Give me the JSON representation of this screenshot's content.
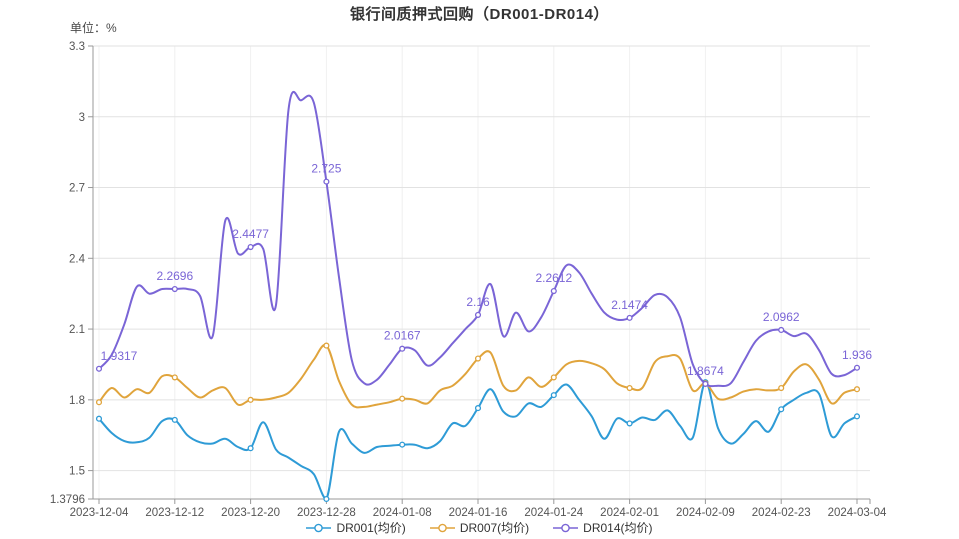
{
  "title": "银行间质押式回购（DR001-DR014）",
  "unit_label": "单位：%",
  "colors": {
    "grid": "#e2e2e2",
    "grid_vertical": "#f0f0f0",
    "axis": "#999999",
    "tick_label": "#555555",
    "title": "#333333",
    "background": "#ffffff"
  },
  "chart_data": {
    "type": "line",
    "smooth": true,
    "grid": true,
    "legend_position": "bottom",
    "ylim": [
      1.3796,
      3.3
    ],
    "y_tick_values": [
      3.3,
      3.0,
      2.7,
      2.4,
      2.1,
      1.8,
      1.5
    ],
    "y_tick_labels": [
      "3.3",
      "3",
      "2.7",
      "2.4",
      "2.1",
      "1.8",
      "1.5"
    ],
    "y_min_label": "1.3796",
    "x_tick_labels": [
      "2023-12-04",
      "2023-12-12",
      "2023-12-20",
      "2023-12-28",
      "2024-01-08",
      "2024-01-16",
      "2024-01-24",
      "2024-02-01",
      "2024-02-09",
      "2024-02-23",
      "2024-03-04"
    ],
    "points_per_tick": 6,
    "series": [
      {
        "name": "DR001(均价)",
        "color": "#2e9bd6",
        "values": [
          1.72,
          1.66,
          1.625,
          1.62,
          1.64,
          1.71,
          1.715,
          1.65,
          1.62,
          1.615,
          1.635,
          1.6,
          1.595,
          1.705,
          1.59,
          1.555,
          1.52,
          1.485,
          1.3796,
          1.665,
          1.615,
          1.575,
          1.6,
          1.605,
          1.61,
          1.61,
          1.595,
          1.625,
          1.7,
          1.69,
          1.765,
          1.845,
          1.75,
          1.73,
          1.785,
          1.77,
          1.82,
          1.865,
          1.8,
          1.73,
          1.635,
          1.72,
          1.7,
          1.725,
          1.715,
          1.755,
          1.69,
          1.64,
          1.875,
          1.68,
          1.615,
          1.655,
          1.71,
          1.665,
          1.76,
          1.8,
          1.83,
          1.825,
          1.645,
          1.7,
          1.73
        ]
      },
      {
        "name": "DR007(均价)",
        "color": "#e0a43c",
        "values": [
          1.79,
          1.85,
          1.81,
          1.845,
          1.83,
          1.9,
          1.895,
          1.85,
          1.81,
          1.84,
          1.85,
          1.78,
          1.8,
          1.8,
          1.81,
          1.83,
          1.89,
          1.97,
          2.03,
          1.88,
          1.78,
          1.77,
          1.78,
          1.79,
          1.805,
          1.8,
          1.785,
          1.84,
          1.86,
          1.91,
          1.975,
          2.0,
          1.86,
          1.84,
          1.895,
          1.855,
          1.895,
          1.95,
          1.965,
          1.955,
          1.93,
          1.87,
          1.85,
          1.85,
          1.96,
          1.985,
          1.975,
          1.84,
          1.87,
          1.805,
          1.81,
          1.835,
          1.845,
          1.84,
          1.85,
          1.92,
          1.95,
          1.885,
          1.785,
          1.83,
          1.845
        ]
      },
      {
        "name": "DR014(均价)",
        "color": "#7a65d6",
        "values": [
          1.9317,
          1.99,
          2.12,
          2.28,
          2.25,
          2.27,
          2.2696,
          2.27,
          2.24,
          2.07,
          2.56,
          2.42,
          2.4477,
          2.44,
          2.2,
          3.03,
          3.07,
          3.06,
          2.725,
          2.32,
          1.97,
          1.87,
          1.885,
          1.95,
          2.0167,
          2.01,
          1.945,
          1.98,
          2.04,
          2.1,
          2.16,
          2.29,
          2.07,
          2.17,
          2.09,
          2.15,
          2.2612,
          2.37,
          2.34,
          2.25,
          2.17,
          2.14,
          2.1474,
          2.19,
          2.245,
          2.235,
          2.15,
          1.95,
          1.8674,
          1.86,
          1.87,
          1.96,
          2.05,
          2.09,
          2.0962,
          2.07,
          2.08,
          2.01,
          1.91,
          1.905,
          1.936
        ],
        "point_labels": [
          "1.9317",
          "2.2696",
          "2.4477",
          "2.725",
          "2.0167",
          "2.16",
          "2.2612",
          "2.1474",
          "1.8674",
          "2.0962",
          "1.936"
        ]
      }
    ]
  }
}
